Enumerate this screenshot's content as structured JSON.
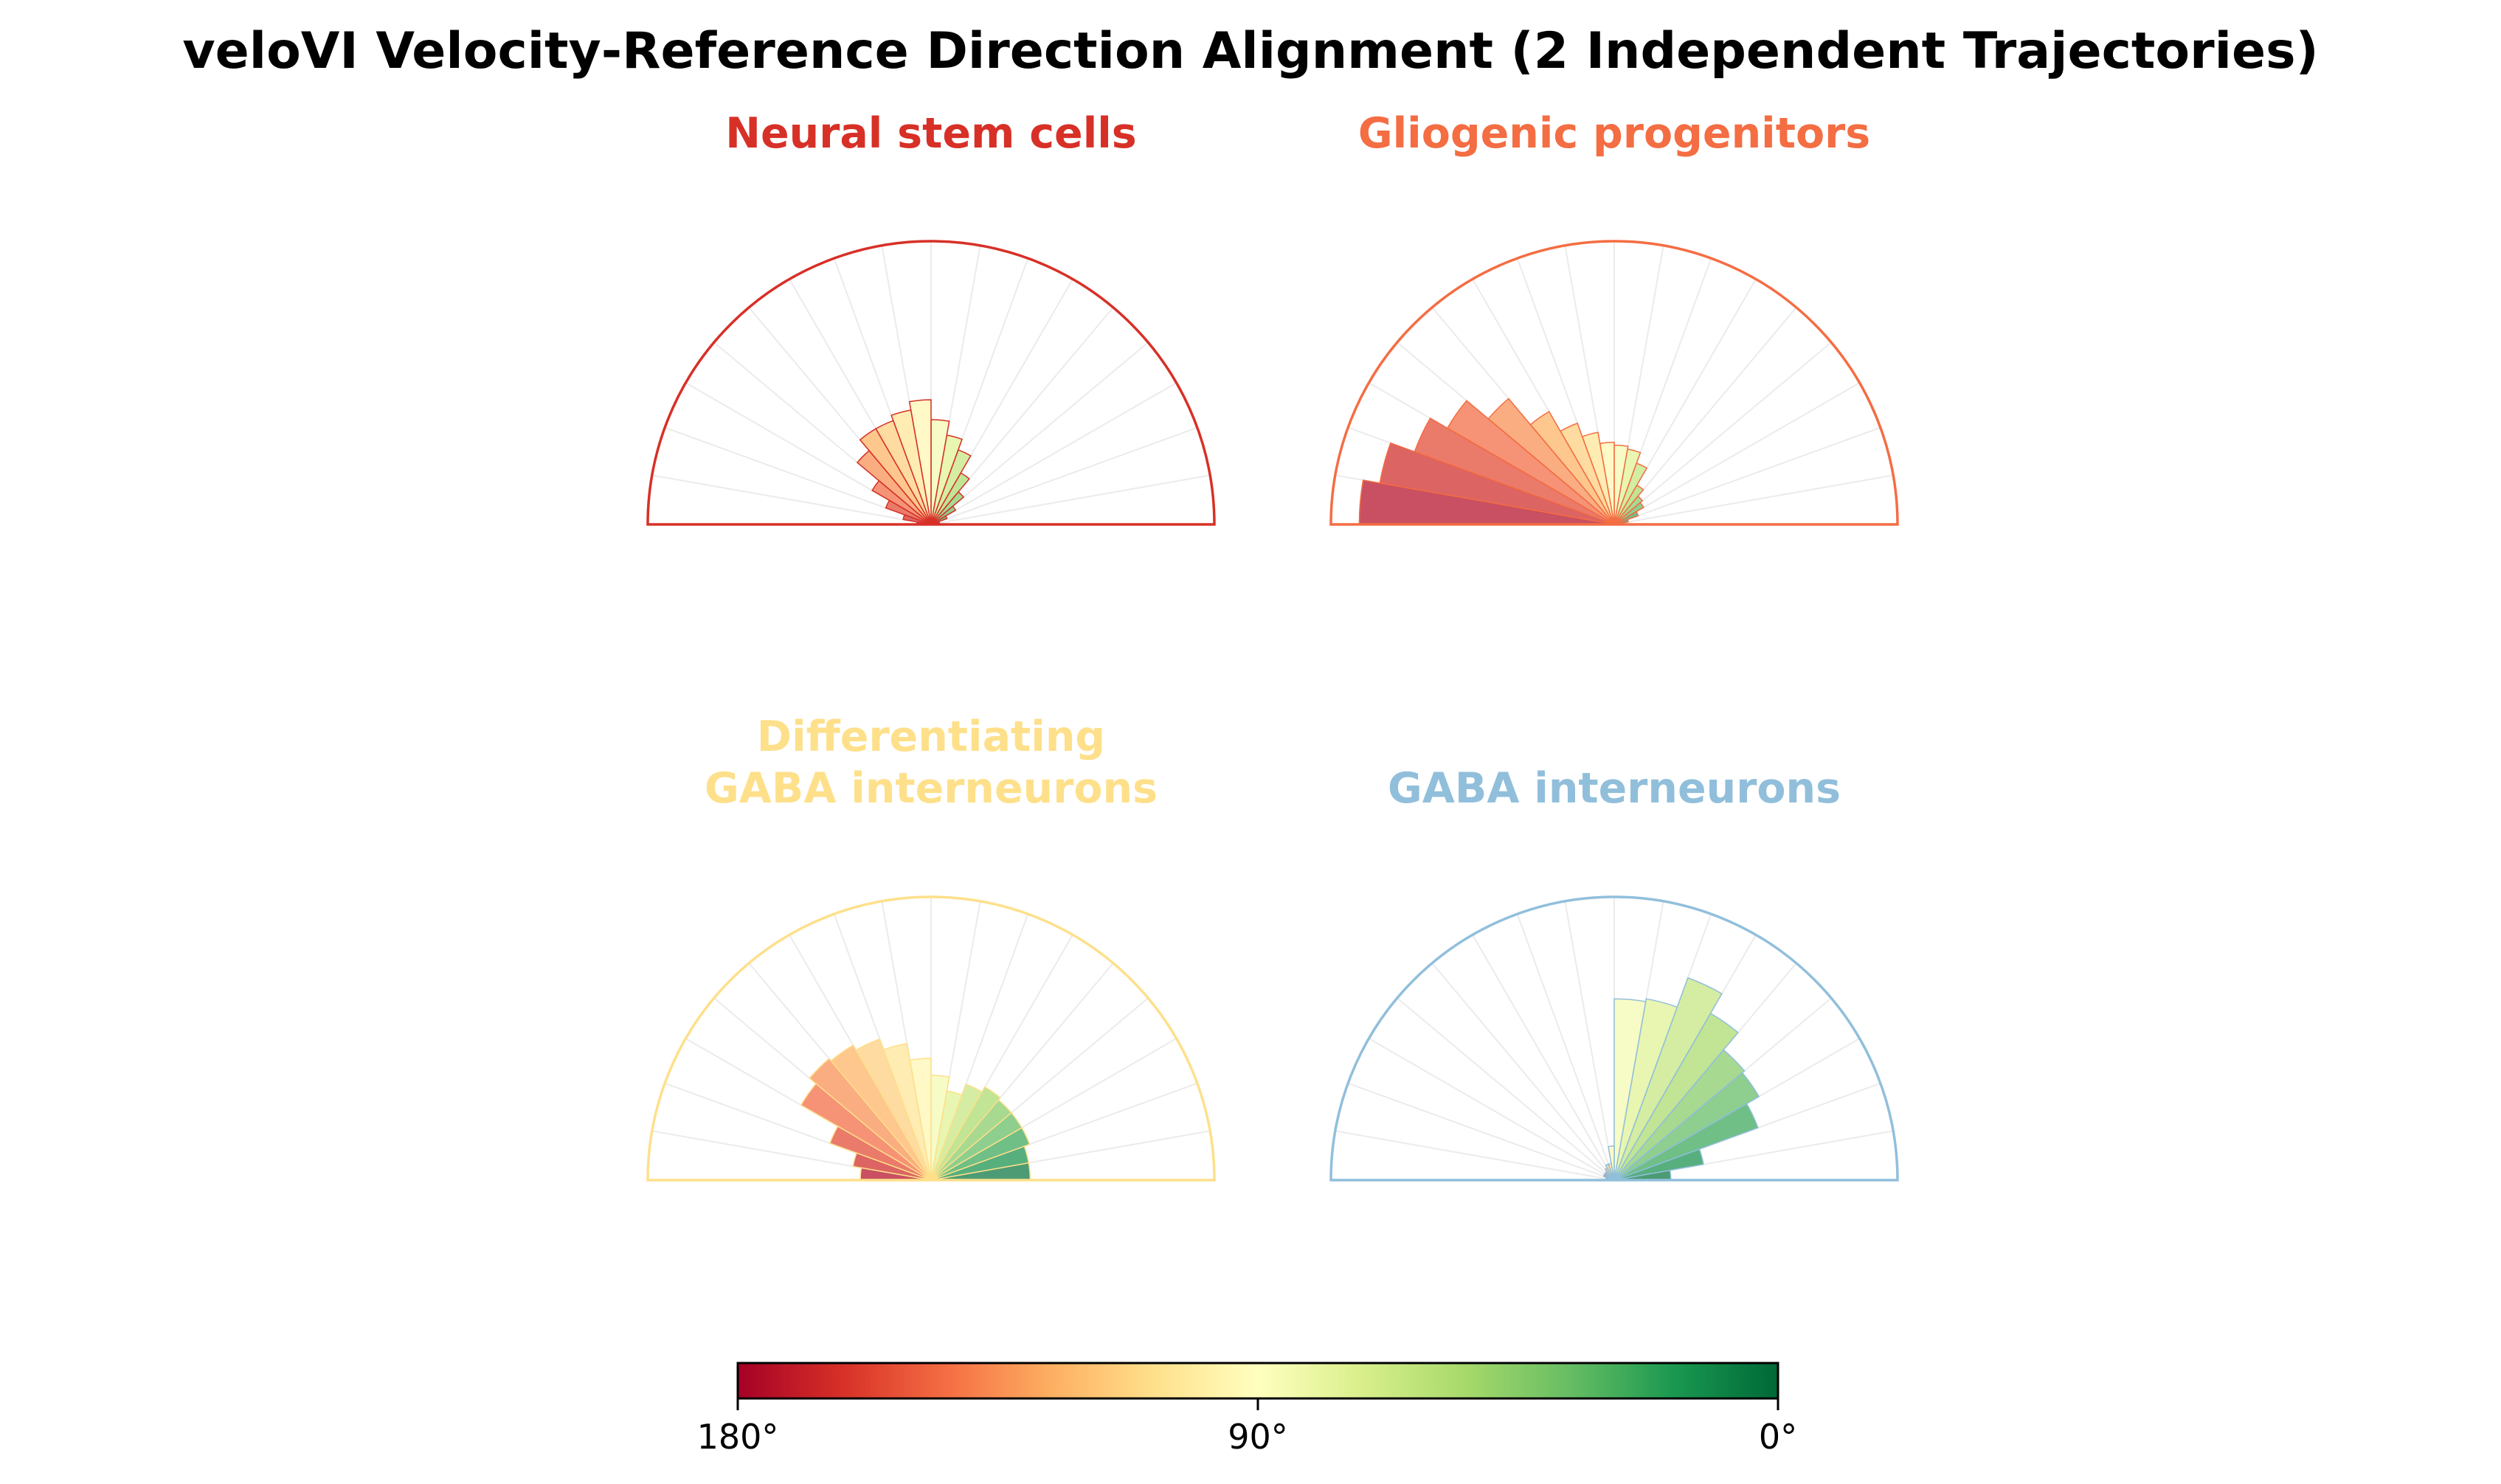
{
  "title": "veloVI Velocity-Reference Direction Alignment (2 Independent Trajectories)",
  "angle_unit": "°",
  "chart_data": [
    {
      "type": "polar-bar",
      "title": "Neural stem cells",
      "title_color": "#d73027",
      "theta_range": [
        0,
        180
      ],
      "bins_per_semicircle": 18,
      "radius_max": 1.0,
      "values": [
        0.01,
        0.03,
        0.06,
        0.1,
        0.15,
        0.21,
        0.28,
        0.32,
        0.37,
        0.44,
        0.41,
        0.39,
        0.39,
        0.34,
        0.24,
        0.17,
        0.1,
        0.05
      ]
    },
    {
      "type": "polar-bar",
      "title": "Gliogenic progenitors",
      "title_color": "#f46d43",
      "theta_range": [
        0,
        180
      ],
      "bins_per_semicircle": 18,
      "radius_max": 1.0,
      "values": [
        0.03,
        0.05,
        0.09,
        0.12,
        0.13,
        0.16,
        0.23,
        0.27,
        0.28,
        0.29,
        0.33,
        0.38,
        0.46,
        0.58,
        0.68,
        0.75,
        0.84,
        0.9
      ]
    },
    {
      "type": "polar-bar",
      "title": "Differentiating\nGABA interneurons",
      "title_color": "#fee08b",
      "theta_range": [
        0,
        180
      ],
      "bins_per_semicircle": 18,
      "radius_max": 1.0,
      "values": [
        0.35,
        0.35,
        0.37,
        0.37,
        0.37,
        0.38,
        0.36,
        0.32,
        0.37,
        0.43,
        0.49,
        0.53,
        0.55,
        0.56,
        0.53,
        0.38,
        0.28,
        0.25
      ]
    },
    {
      "type": "polar-bar",
      "title": "GABA interneurons",
      "title_color": "#91bfdb",
      "theta_range": [
        0,
        180
      ],
      "bins_per_semicircle": 18,
      "radius_max": 1.0,
      "values": [
        0.2,
        0.32,
        0.54,
        0.59,
        0.6,
        0.68,
        0.76,
        0.65,
        0.64,
        0.12,
        0.06,
        0.06,
        0.05,
        0.04,
        0.04,
        0.04,
        0.03,
        0.03
      ]
    }
  ],
  "colorbar": {
    "colormap": "RdYlGn",
    "range": [
      180,
      0
    ],
    "ticks": [
      180,
      90,
      0
    ],
    "tick_labels": [
      "180°",
      "90°",
      "0°"
    ],
    "colors_low_to_high": [
      "#006837",
      "#1a9850",
      "#66bd63",
      "#a6d96a",
      "#d9ef8b",
      "#ffffbf",
      "#fee08b",
      "#fdae61",
      "#f46d43",
      "#d73027",
      "#a50026"
    ]
  }
}
